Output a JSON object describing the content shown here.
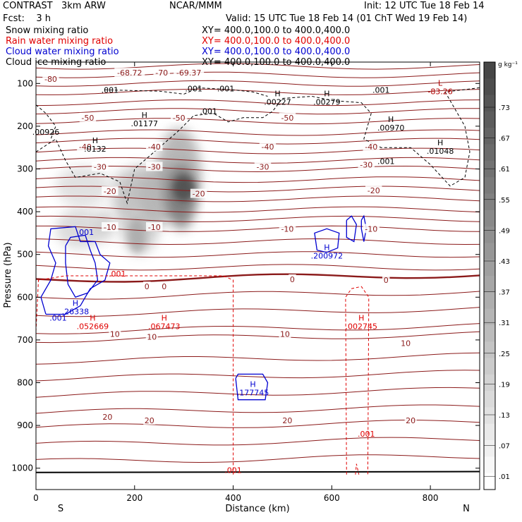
{
  "header": {
    "model": "CONTRAST",
    "config": "3km ARW",
    "center": "NCAR/MMM",
    "init": "Init: 12 UTC Tue 18 Feb 14",
    "fcst_label": "Fcst:",
    "fcst_value": "3 h",
    "valid": "Valid: 15 UTC Tue 18 Feb 14 (01 ChT Wed 19 Feb 14)",
    "fields": [
      {
        "name": "Snow mixing ratio",
        "color": "#000000",
        "xy": "XY= 400.0,100.0 to 400.0,400.0"
      },
      {
        "name": "Rain water mixing ratio",
        "color": "#e00000",
        "xy": "XY= 400.0,100.0 to 400.0,400.0"
      },
      {
        "name": "Cloud water mixing ratio",
        "color": "#0000d0",
        "xy": "XY= 400.0,100.0 to 400.0,400.0"
      },
      {
        "name": "Cloud ice mixing ratio",
        "color": "#000000",
        "xy": "XY= 400.0,100.0 to 400.0,400.0"
      }
    ]
  },
  "chart_data": {
    "type": "heatmap",
    "xlabel": "Distance (km)",
    "ylabel": "Pressure (hPa)",
    "xlim": [
      0,
      900
    ],
    "ylim": [
      1050,
      50
    ],
    "x_ticks": [
      0,
      200,
      400,
      600,
      800
    ],
    "y_ticks": [
      100,
      200,
      300,
      400,
      500,
      600,
      700,
      800,
      900,
      1000
    ],
    "end_labels": {
      "left": "S",
      "right": "N"
    },
    "colorbar": {
      "unit": "g kg⁻¹",
      "ticks": [
        ".73",
        ".67",
        ".61",
        ".55",
        ".49",
        ".43",
        ".37",
        ".31",
        ".25",
        ".19",
        ".13",
        ".07",
        ".01"
      ]
    },
    "temperature_labels": [
      {
        "x": 30,
        "p": 90,
        "text": "-80"
      },
      {
        "x": 190,
        "p": 75,
        "text": "-68.72"
      },
      {
        "x": 255,
        "p": 75,
        "text": "-70"
      },
      {
        "x": 310,
        "p": 75,
        "text": "-69.37"
      },
      {
        "x": 105,
        "p": 180,
        "text": "-50"
      },
      {
        "x": 290,
        "p": 180,
        "text": "-50"
      },
      {
        "x": 510,
        "p": 180,
        "text": "-50"
      },
      {
        "x": 100,
        "p": 248,
        "text": "-40"
      },
      {
        "x": 240,
        "p": 248,
        "text": "-40"
      },
      {
        "x": 470,
        "p": 248,
        "text": "-40"
      },
      {
        "x": 680,
        "p": 248,
        "text": "-40"
      },
      {
        "x": 130,
        "p": 295,
        "text": "-30"
      },
      {
        "x": 240,
        "p": 295,
        "text": "-30"
      },
      {
        "x": 460,
        "p": 295,
        "text": "-30"
      },
      {
        "x": 670,
        "p": 290,
        "text": "-30"
      },
      {
        "x": 150,
        "p": 352,
        "text": "-20"
      },
      {
        "x": 330,
        "p": 358,
        "text": "-20"
      },
      {
        "x": 685,
        "p": 350,
        "text": "-20"
      },
      {
        "x": 150,
        "p": 436,
        "text": "-10"
      },
      {
        "x": 240,
        "p": 436,
        "text": "-10"
      },
      {
        "x": 510,
        "p": 440,
        "text": "-10"
      },
      {
        "x": 680,
        "p": 440,
        "text": "-10"
      },
      {
        "x": 225,
        "p": 575,
        "text": "0"
      },
      {
        "x": 260,
        "p": 575,
        "text": "0"
      },
      {
        "x": 520,
        "p": 558,
        "text": "0"
      },
      {
        "x": 710,
        "p": 560,
        "text": "0"
      },
      {
        "x": 160,
        "p": 686,
        "text": "10"
      },
      {
        "x": 235,
        "p": 693,
        "text": "10"
      },
      {
        "x": 505,
        "p": 686,
        "text": "10"
      },
      {
        "x": 750,
        "p": 708,
        "text": "10"
      },
      {
        "x": 145,
        "p": 880,
        "text": "20"
      },
      {
        "x": 230,
        "p": 888,
        "text": "20"
      },
      {
        "x": 510,
        "p": 888,
        "text": "20"
      },
      {
        "x": 760,
        "p": 888,
        "text": "20"
      }
    ],
    "max_labels": [
      {
        "x": 220,
        "p": 180,
        "label": "H",
        "value": ".01177",
        "color": "#000000"
      },
      {
        "x": 120,
        "p": 240,
        "label": "H",
        "value": ".0132",
        "color": "#000000"
      },
      {
        "x": 490,
        "p": 130,
        "label": "H",
        "value": ".00227",
        "color": "#000000"
      },
      {
        "x": 590,
        "p": 130,
        "label": "H",
        "value": ".00279",
        "color": "#000000"
      },
      {
        "x": 20,
        "p": 200,
        "label": "",
        "value": ".00926",
        "color": "#000000"
      },
      {
        "x": 720,
        "p": 190,
        "label": "H",
        "value": ".00970",
        "color": "#000000"
      },
      {
        "x": 820,
        "p": 245,
        "label": "H",
        "value": ".01048",
        "color": "#000000"
      },
      {
        "x": 820,
        "p": 105,
        "label": "L",
        "value": "-83.26",
        "color": "#b00000"
      },
      {
        "x": 80,
        "p": 620,
        "label": "H",
        "value": ".26338",
        "color": "#0000d0"
      },
      {
        "x": 590,
        "p": 490,
        "label": "H",
        "value": ".200972",
        "color": "#0000d0"
      },
      {
        "x": 440,
        "p": 810,
        "label": "H",
        "value": ".177745",
        "color": "#0000d0"
      },
      {
        "x": 115,
        "p": 655,
        "label": "H",
        "value": ".052669",
        "color": "#e00000"
      },
      {
        "x": 260,
        "p": 655,
        "label": "H",
        "value": ".067473",
        "color": "#e00000"
      },
      {
        "x": 660,
        "p": 655,
        "label": "H",
        "value": ".002745",
        "color": "#e00000"
      }
    ],
    "contour_labels": [
      {
        "x": 150,
        "p": 115,
        "text": ".001",
        "color": "#000000"
      },
      {
        "x": 320,
        "p": 112,
        "text": ".001",
        "color": "#000000"
      },
      {
        "x": 385,
        "p": 112,
        "text": ".001",
        "color": "#000000"
      },
      {
        "x": 350,
        "p": 165,
        "text": ".001",
        "color": "#000000"
      },
      {
        "x": 700,
        "p": 115,
        "text": ".001",
        "color": "#000000"
      },
      {
        "x": 710,
        "p": 282,
        "text": ".001",
        "color": "#000000"
      },
      {
        "x": 100,
        "p": 448,
        "text": ".001",
        "color": "#0000d0"
      },
      {
        "x": 45,
        "p": 648,
        "text": ".001",
        "color": "#0000d0"
      },
      {
        "x": 165,
        "p": 545,
        "text": ".001",
        "color": "#e00000"
      },
      {
        "x": 400,
        "p": 1005,
        "text": ".001",
        "color": "#e00000"
      },
      {
        "x": 670,
        "p": 920,
        "text": ".001",
        "color": "#e00000"
      }
    ]
  }
}
